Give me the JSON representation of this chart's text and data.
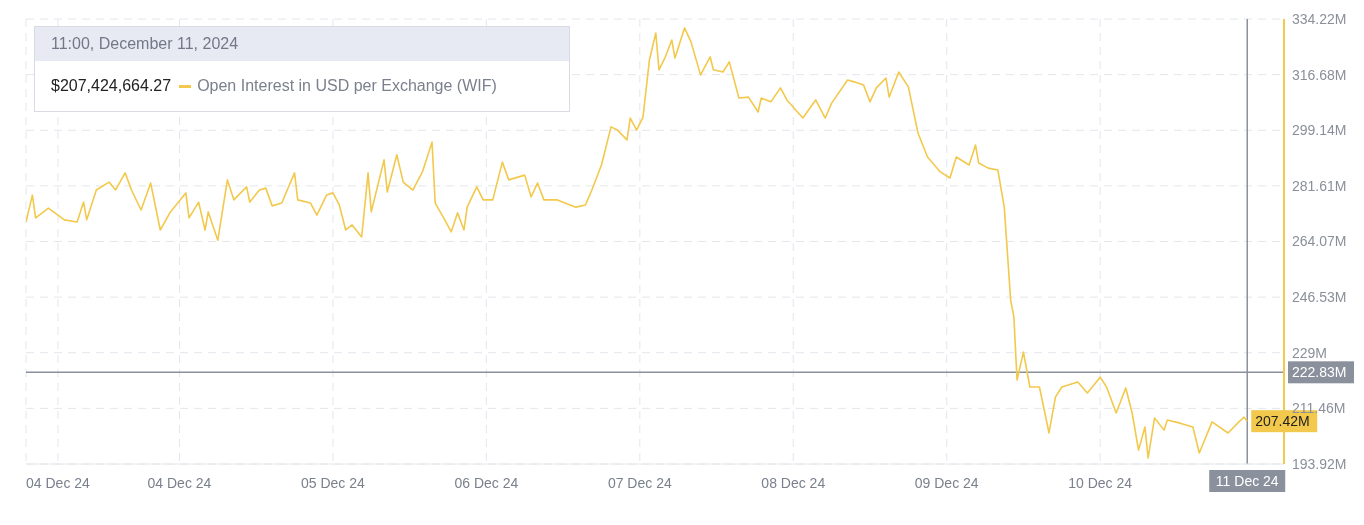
{
  "chart_data": {
    "type": "line",
    "annotations": [
      "11:00, December 11, 2024",
      "$207,424,664.27",
      {
        "text": "207.42M",
        "x": "2024-12-11T11:00",
        "y": 207.42
      }
    ],
    "x": [
      "2024-12-03T12:00",
      "2024-12-03T13:00",
      "2024-12-03T13:30",
      "2024-12-03T15:30",
      "2024-12-03T18:00",
      "2024-12-03T20:00",
      "2024-12-03T21:00",
      "2024-12-03T21:30",
      "2024-12-03T23:00",
      "2024-12-04T01:00",
      "2024-12-04T02:00",
      "2024-12-04T03:30",
      "2024-12-04T04:30",
      "2024-12-04T06:00",
      "2024-12-04T07:30",
      "2024-12-04T09:00",
      "2024-12-04T10:30",
      "2024-12-04T13:00",
      "2024-12-04T13:30",
      "2024-12-04T15:00",
      "2024-12-04T16:00",
      "2024-12-04T16:30",
      "2024-12-04T18:00",
      "2024-12-04T19:30",
      "2024-12-04T20:30",
      "2024-12-04T22:30",
      "2024-12-04T23:00",
      "2024-12-05T00:30",
      "2024-12-05T01:30",
      "2024-12-05T02:30",
      "2024-12-05T04:00",
      "2024-12-05T06:00",
      "2024-12-05T06:30",
      "2024-12-05T08:30",
      "2024-12-05T09:30",
      "2024-12-05T11:00",
      "2024-12-05T12:00",
      "2024-12-05T13:00",
      "2024-12-05T14:00",
      "2024-12-05T15:00",
      "2024-12-05T16:30",
      "2024-12-05T17:30",
      "2024-12-05T18:00",
      "2024-12-05T20:00",
      "2024-12-05T20:30",
      "2024-12-05T22:00",
      "2024-12-05T23:00",
      "2024-12-06T00:30",
      "2024-12-06T02:00",
      "2024-12-06T03:30",
      "2024-12-06T04:00",
      "2024-12-06T05:30",
      "2024-12-06T06:30",
      "2024-12-06T07:30",
      "2024-12-06T08:30",
      "2024-12-06T09:00",
      "2024-12-06T10:30",
      "2024-12-06T11:30",
      "2024-12-06T13:00",
      "2024-12-06T14:30",
      "2024-12-06T15:30",
      "2024-12-06T18:00",
      "2024-12-06T19:00",
      "2024-12-06T20:00",
      "2024-12-06T21:00",
      "2024-12-06T23:00",
      "2024-12-07T02:00",
      "2024-12-07T03:30",
      "2024-12-07T04:30",
      "2024-12-07T06:00",
      "2024-12-07T07:30",
      "2024-12-07T08:30",
      "2024-12-07T10:00",
      "2024-12-07T10:30",
      "2024-12-07T11:30",
      "2024-12-07T12:30",
      "2024-12-07T13:30",
      "2024-12-07T14:30",
      "2024-12-07T15:00",
      "2024-12-07T16:00",
      "2024-12-07T17:00",
      "2024-12-07T17:30",
      "2024-12-07T19:00",
      "2024-12-07T20:00",
      "2024-12-07T21:30",
      "2024-12-07T23:00",
      "2024-12-07T23:30",
      "2024-12-08T01:00",
      "2024-12-08T02:00",
      "2024-12-08T03:30",
      "2024-12-08T05:00",
      "2024-12-08T06:30",
      "2024-12-08T07:00",
      "2024-12-08T08:30",
      "2024-12-08T10:00",
      "2024-12-08T11:00",
      "2024-12-08T13:30",
      "2024-12-08T15:30",
      "2024-12-08T17:00",
      "2024-12-08T18:00",
      "2024-12-08T20:30",
      "2024-12-08T21:30",
      "2024-12-08T23:00",
      "2024-12-09T00:00",
      "2024-12-09T01:00",
      "2024-12-09T02:30",
      "2024-12-09T03:00",
      "2024-12-09T04:30",
      "2024-12-09T06:00",
      "2024-12-09T07:30",
      "2024-12-09T09:00",
      "2024-12-09T11:00",
      "2024-12-09T12:30",
      "2024-12-09T13:30",
      "2024-12-09T15:30",
      "2024-12-09T16:30",
      "2024-12-09T17:00",
      "2024-12-09T18:30",
      "2024-12-09T20:00",
      "2024-12-09T21:00",
      "2024-12-09T22:00",
      "2024-12-09T22:30",
      "2024-12-09T23:00",
      "2024-12-10T00:00",
      "2024-12-10T01:00",
      "2024-12-10T02:30",
      "2024-12-10T04:00",
      "2024-12-10T05:00",
      "2024-12-10T06:00",
      "2024-12-10T08:30",
      "2024-12-10T10:00",
      "2024-12-10T12:00",
      "2024-12-10T13:00",
      "2024-12-10T14:30",
      "2024-12-10T16:00",
      "2024-12-10T17:00",
      "2024-12-10T18:00",
      "2024-12-10T19:00",
      "2024-12-10T19:30",
      "2024-12-10T20:30",
      "2024-12-10T22:00",
      "2024-12-10T22:30",
      "2024-12-11T00:30",
      "2024-12-11T02:30",
      "2024-12-11T03:30",
      "2024-12-11T05:30",
      "2024-12-11T08:00",
      "2024-12-11T09:30",
      "2024-12-11T10:30",
      "2024-12-11T11:00"
    ],
    "series": [
      {
        "name": "Open Interest in USD per Exchange (WIF)",
        "color": "#f2c94c",
        "values": [
          270.2,
          278.7,
          271.5,
          274.6,
          270.9,
          270.2,
          276.5,
          270.9,
          280.3,
          282.8,
          280.3,
          285.7,
          280.3,
          274.0,
          282.5,
          267.7,
          273.1,
          279.4,
          271.5,
          276.5,
          267.7,
          273.4,
          264.5,
          283.5,
          277.2,
          281.3,
          276.5,
          280.3,
          280.9,
          275.3,
          276.2,
          285.7,
          277.2,
          276.2,
          272.4,
          278.7,
          279.4,
          275.6,
          267.7,
          269.3,
          265.5,
          285.7,
          273.4,
          289.8,
          279.7,
          291.4,
          282.8,
          280.3,
          286.0,
          295.4,
          276.2,
          270.9,
          267.1,
          273.1,
          267.7,
          274.9,
          281.3,
          277.2,
          277.2,
          289.1,
          283.5,
          285.0,
          278.1,
          282.5,
          277.2,
          277.2,
          274.9,
          275.6,
          280.3,
          288.2,
          300.2,
          299.2,
          296.1,
          303.0,
          299.2,
          303.3,
          321.3,
          329.8,
          318.2,
          322.3,
          327.6,
          321.9,
          331.4,
          327.0,
          316.6,
          322.3,
          318.2,
          317.5,
          320.7,
          309.3,
          309.6,
          304.9,
          309.3,
          308.1,
          312.5,
          308.7,
          303.0,
          308.7,
          303.0,
          307.7,
          315.0,
          314.4,
          313.4,
          308.1,
          312.5,
          315.6,
          309.6,
          317.5,
          312.8,
          298.3,
          290.7,
          286.0,
          284.1,
          290.7,
          288.2,
          294.5,
          288.8,
          287.2,
          286.6,
          274.9,
          245.6,
          240.3,
          220.4,
          229.2,
          218.2,
          218.2,
          203.7,
          215.0,
          218.2,
          219.8,
          216.3,
          221.3,
          218.2,
          210.0,
          217.9,
          210.0,
          198.3,
          205.6,
          195.8,
          208.4,
          204.6,
          207.8,
          206.8,
          205.6,
          197.4,
          207.2,
          203.7,
          206.8,
          208.7,
          207.42
        ]
      }
    ],
    "xlim": [
      "2024-12-03T12:00",
      "2024-12-11T16:45"
    ],
    "xticks": [
      {
        "value": "2024-12-03T17:00",
        "label": "04 Dec 24"
      },
      {
        "value": "2024-12-04T12:00",
        "label": "04 Dec 24"
      },
      {
        "value": "2024-12-05T12:00",
        "label": "05 Dec 24"
      },
      {
        "value": "2024-12-06T12:00",
        "label": "06 Dec 24"
      },
      {
        "value": "2024-12-07T12:00",
        "label": "07 Dec 24"
      },
      {
        "value": "2024-12-08T12:00",
        "label": "08 Dec 24"
      },
      {
        "value": "2024-12-09T12:00",
        "label": "09 Dec 24"
      },
      {
        "value": "2024-12-10T12:00",
        "label": "10 Dec 24"
      }
    ],
    "ylim": [
      193.92,
      334.22
    ],
    "yticks": [
      {
        "value": 193.92,
        "label": "193.92M"
      },
      {
        "value": 211.46,
        "label": "211.46M"
      },
      {
        "value": 229,
        "label": "229M"
      },
      {
        "value": 246.53,
        "label": "246.53M"
      },
      {
        "value": 264.07,
        "label": "264.07M"
      },
      {
        "value": 281.61,
        "label": "281.61M"
      },
      {
        "value": 299.14,
        "label": "299.14M"
      },
      {
        "value": 316.68,
        "label": "316.68M"
      },
      {
        "value": 334.22,
        "label": "334.22M"
      }
    ],
    "ref_lines": [
      {
        "axis": "y",
        "value": 222.83,
        "label": "222.83M",
        "color": "#8a909c"
      },
      {
        "axis": "x",
        "value": "2024-12-11T11:00",
        "label": "11 Dec 24",
        "color": "#8a909c"
      }
    ],
    "grid": true,
    "legend": "top left",
    "marker": "none",
    "line_style": "solid"
  }
}
